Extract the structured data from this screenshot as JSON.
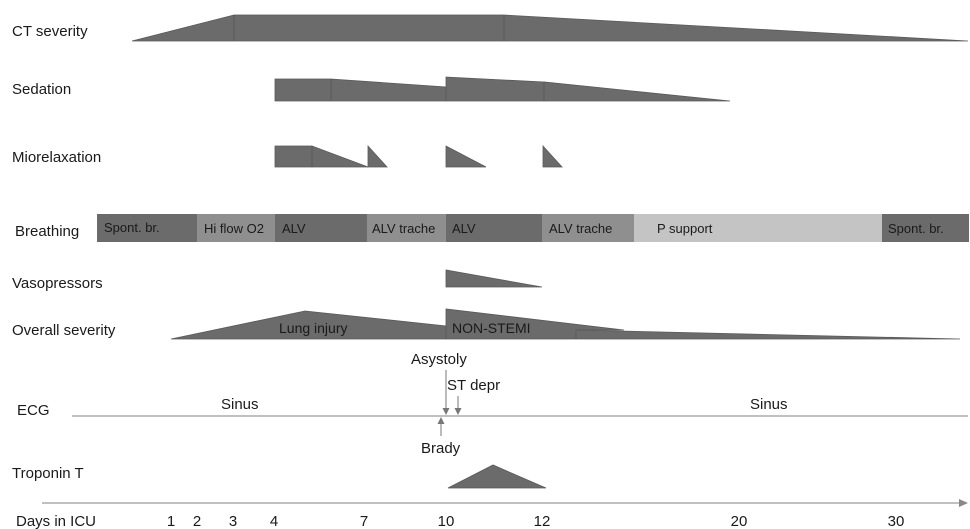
{
  "colors": {
    "dark": "#6b6b6b",
    "band_medium": "#8f8f8f",
    "band_light": "#c4c4c4",
    "line": "#9a9a9a",
    "text": "#1a1a1a"
  },
  "rows": {
    "ct_severity": "CT severity",
    "sedation": "Sedation",
    "miorelaxation": "Miorelaxation",
    "breathing": "Breathing",
    "vasopressors": "Vasopressors",
    "overall_severity": "Overall severity",
    "ecg": "ECG",
    "troponin_t": "Troponin T"
  },
  "breathing_segments": [
    {
      "label": "Spont. br.",
      "shade": "dark"
    },
    {
      "label": "Hi flow O2",
      "shade": "band_medium"
    },
    {
      "label": "ALV",
      "shade": "dark"
    },
    {
      "label": "ALV trache",
      "shade": "band_medium"
    },
    {
      "label": "ALV",
      "shade": "dark"
    },
    {
      "label": "ALV trache",
      "shade": "band_medium"
    },
    {
      "label": "P support",
      "shade": "band_light"
    },
    {
      "label": "Spont. br.",
      "shade": "dark"
    }
  ],
  "overall_annotations": {
    "lung_injury": "Lung injury",
    "non_stemi": "NON-STEMI"
  },
  "ecg_annotations": {
    "sinus_left": "Sinus",
    "sinus_right": "Sinus",
    "asystoly": "Asystoly",
    "st_depr": "ST depr",
    "brady": "Brady"
  },
  "axis": {
    "label": "Days in ICU",
    "ticks": [
      "1",
      "2",
      "3",
      "4",
      "7",
      "10",
      "12",
      "20",
      "30"
    ]
  }
}
